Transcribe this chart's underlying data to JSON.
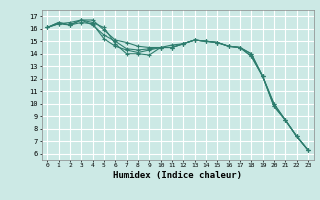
{
  "title": "",
  "xlabel": "Humidex (Indice chaleur)",
  "ylabel": "",
  "bg_color": "#cce9e5",
  "grid_color": "#ffffff",
  "line_color": "#2e7d6e",
  "marker": "+",
  "xlim": [
    -0.5,
    23.5
  ],
  "ylim": [
    5.5,
    17.5
  ],
  "xticks": [
    0,
    1,
    2,
    3,
    4,
    5,
    6,
    7,
    8,
    9,
    10,
    11,
    12,
    13,
    14,
    15,
    16,
    17,
    18,
    19,
    20,
    21,
    22,
    23
  ],
  "yticks": [
    6,
    7,
    8,
    9,
    10,
    11,
    12,
    13,
    14,
    15,
    16,
    17
  ],
  "series": [
    [
      16.1,
      16.5,
      16.3,
      16.7,
      16.5,
      16.1,
      14.8,
      14.0,
      14.0,
      13.9,
      14.5,
      14.7,
      14.8,
      15.1,
      15.0,
      14.9,
      14.6,
      14.5,
      14.0,
      12.2,
      9.8,
      8.7,
      7.4,
      6.3
    ],
    [
      16.1,
      16.5,
      16.3,
      16.7,
      16.7,
      15.9,
      15.1,
      14.9,
      14.6,
      14.5,
      14.5,
      14.5,
      14.8,
      15.1,
      15.0,
      14.9,
      14.6,
      14.5,
      14.0,
      12.2,
      9.8,
      8.7,
      7.4,
      6.3
    ],
    [
      16.1,
      16.4,
      16.5,
      16.7,
      16.3,
      15.5,
      15.0,
      14.4,
      14.3,
      14.4,
      14.5,
      14.5,
      14.8,
      15.1,
      15.0,
      14.9,
      14.6,
      14.5,
      13.8,
      12.2,
      10.0,
      8.7,
      7.4,
      6.3
    ],
    [
      16.1,
      16.4,
      16.3,
      16.5,
      16.4,
      15.2,
      14.6,
      14.3,
      14.1,
      14.3,
      14.5,
      14.5,
      14.8,
      15.1,
      15.0,
      14.9,
      14.6,
      14.5,
      13.8,
      12.2,
      10.0,
      8.7,
      7.4,
      6.3
    ]
  ]
}
